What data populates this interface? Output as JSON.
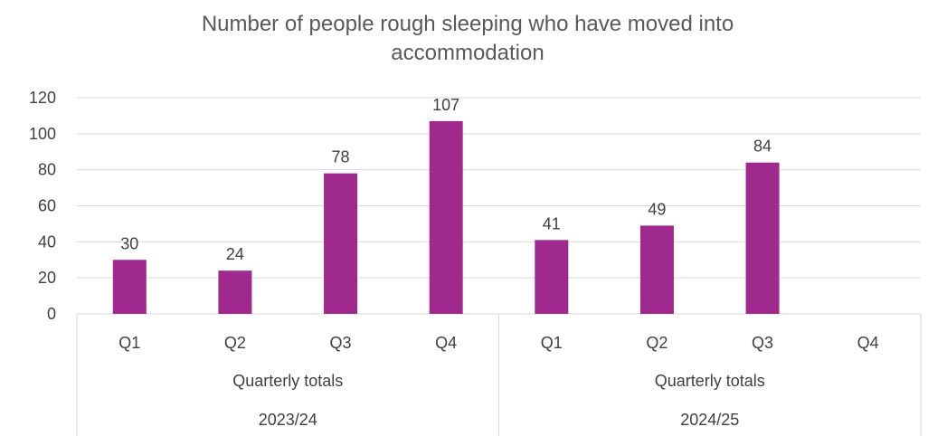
{
  "chart_data": {
    "type": "bar",
    "title_line1": "Number of people rough sleeping who have moved into",
    "title_line2": "accommodation",
    "categories": [
      "Q1",
      "Q2",
      "Q3",
      "Q4",
      "Q1",
      "Q2",
      "Q3",
      "Q4"
    ],
    "values": [
      30,
      24,
      78,
      107,
      41,
      49,
      84,
      null
    ],
    "data_labels": [
      "30",
      "24",
      "78",
      "107",
      "41",
      "49",
      "84",
      ""
    ],
    "groups": [
      {
        "label": "Quarterly totals",
        "year": "2023/24"
      },
      {
        "label": "Quarterly totals",
        "year": "2024/25"
      }
    ],
    "ylim": [
      0,
      120
    ],
    "yticks": [
      0,
      20,
      40,
      60,
      80,
      100,
      120
    ],
    "grid": true,
    "legend": "none",
    "bar_color": "#A0298E",
    "grid_color": "#D9D9D9"
  }
}
